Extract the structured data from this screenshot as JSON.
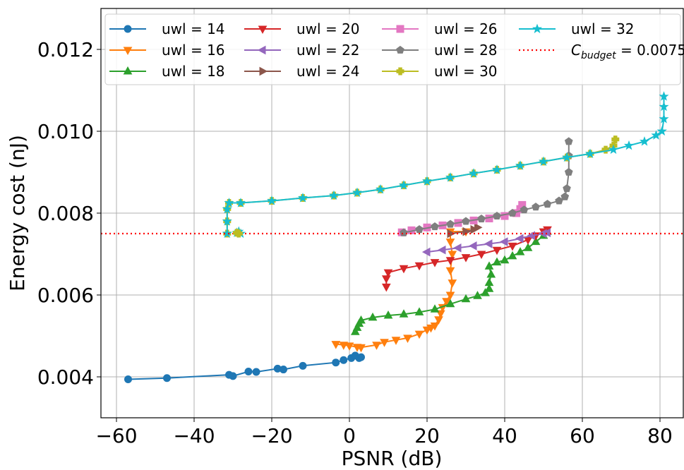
{
  "chart_data": {
    "type": "line",
    "xlabel": "PSNR (dB)",
    "ylabel": "Energy cost (nJ)",
    "xlim": [
      -64,
      86
    ],
    "ylim": [
      0.003,
      0.013
    ],
    "xticks": [
      -60,
      -40,
      -20,
      0,
      20,
      40,
      60,
      80
    ],
    "xtick_labels": [
      "−60",
      "−40",
      "−20",
      "0",
      "20",
      "40",
      "60",
      "80"
    ],
    "yticks": [
      0.004,
      0.006,
      0.008,
      0.01,
      0.012
    ],
    "ytick_labels": [
      "0.004",
      "0.006",
      "0.008",
      "0.010",
      "0.012"
    ],
    "grid": true,
    "legend": {
      "placement": "top",
      "columns": 4
    },
    "series": [
      {
        "name": "uwl = 14",
        "color": "#1f77b4",
        "marker": "circle",
        "points": [
          [
            -57,
            0.00394
          ],
          [
            -47,
            0.00397
          ],
          [
            -31,
            0.00405
          ],
          [
            -30,
            0.00402
          ],
          [
            -26,
            0.00413
          ],
          [
            -24,
            0.00412
          ],
          [
            -18.5,
            0.0042
          ],
          [
            -17,
            0.00418
          ],
          [
            -12,
            0.00427
          ],
          [
            -3.5,
            0.00435
          ],
          [
            -1.5,
            0.00441
          ],
          [
            0.5,
            0.00446
          ],
          [
            1.5,
            0.00452
          ],
          [
            2.5,
            0.00446
          ],
          [
            3,
            0.00448
          ]
        ]
      },
      {
        "name": "uwl = 16",
        "color": "#ff7f0e",
        "marker": "triangle-down",
        "points": [
          [
            -3.5,
            0.0048
          ],
          [
            -1.5,
            0.00478
          ],
          [
            0,
            0.00476
          ],
          [
            2,
            0.00473
          ],
          [
            3,
            0.00472
          ],
          [
            7,
            0.00478
          ],
          [
            9,
            0.00485
          ],
          [
            12,
            0.0049
          ],
          [
            15,
            0.00495
          ],
          [
            18,
            0.00505
          ],
          [
            20,
            0.00515
          ],
          [
            21,
            0.0052
          ],
          [
            22,
            0.00525
          ],
          [
            23,
            0.0054
          ],
          [
            23.5,
            0.00555
          ],
          [
            24,
            0.0057
          ],
          [
            25,
            0.00585
          ],
          [
            26,
            0.006
          ],
          [
            26.5,
            0.0063
          ],
          [
            26,
            0.0066
          ],
          [
            26.5,
            0.007
          ],
          [
            26,
            0.0073
          ],
          [
            26,
            0.00755
          ],
          [
            30,
            0.00755
          ]
        ]
      },
      {
        "name": "uwl = 18",
        "color": "#2ca02c",
        "marker": "triangle-up",
        "points": [
          [
            1.5,
            0.0051
          ],
          [
            2,
            0.0052
          ],
          [
            2.5,
            0.0053
          ],
          [
            3,
            0.00538
          ],
          [
            6,
            0.00545
          ],
          [
            10,
            0.0055
          ],
          [
            14,
            0.00553
          ],
          [
            18,
            0.00558
          ],
          [
            22,
            0.00565
          ],
          [
            26,
            0.00578
          ],
          [
            30,
            0.0059
          ],
          [
            33,
            0.00598
          ],
          [
            35,
            0.00605
          ],
          [
            36,
            0.00615
          ],
          [
            36,
            0.0063
          ],
          [
            36.5,
            0.0065
          ],
          [
            36,
            0.0067
          ],
          [
            38,
            0.0068
          ],
          [
            40,
            0.00685
          ],
          [
            42,
            0.00695
          ],
          [
            44,
            0.00705
          ],
          [
            46,
            0.00715
          ],
          [
            48,
            0.0073
          ],
          [
            50,
            0.00745
          ],
          [
            51,
            0.00755
          ]
        ]
      },
      {
        "name": "uwl = 20",
        "color": "#d62728",
        "marker": "triangle-down",
        "points": [
          [
            9.5,
            0.0062
          ],
          [
            9.5,
            0.0064
          ],
          [
            10,
            0.00655
          ],
          [
            14,
            0.00665
          ],
          [
            18,
            0.00672
          ],
          [
            22,
            0.0068
          ],
          [
            26,
            0.00685
          ],
          [
            30,
            0.00692
          ],
          [
            34,
            0.007
          ],
          [
            38,
            0.0071
          ],
          [
            42,
            0.0072
          ],
          [
            46,
            0.00735
          ],
          [
            48,
            0.00745
          ],
          [
            50,
            0.00755
          ],
          [
            51,
            0.0076
          ]
        ]
      },
      {
        "name": "uwl = 22",
        "color": "#9467bd",
        "marker": "triangle-left",
        "points": [
          [
            20,
            0.00705
          ],
          [
            24,
            0.0071
          ],
          [
            28,
            0.00715
          ],
          [
            32,
            0.0072
          ],
          [
            36,
            0.00725
          ],
          [
            40,
            0.0073
          ],
          [
            44,
            0.00738
          ],
          [
            47,
            0.00745
          ],
          [
            50,
            0.0075
          ],
          [
            51,
            0.00752
          ]
        ]
      },
      {
        "name": "uwl = 24",
        "color": "#8c564b",
        "marker": "triangle-right",
        "points": [
          [
            26,
            0.0075
          ],
          [
            30,
            0.00755
          ],
          [
            32,
            0.0076
          ],
          [
            33,
            0.00765
          ]
        ]
      },
      {
        "name": "uwl = 26",
        "color": "#e377c2",
        "marker": "square",
        "points": [
          [
            13.5,
            0.00753
          ],
          [
            16,
            0.00758
          ],
          [
            20,
            0.00765
          ],
          [
            24,
            0.0077
          ],
          [
            28,
            0.00776
          ],
          [
            32,
            0.00782
          ],
          [
            36,
            0.00787
          ],
          [
            40,
            0.00793
          ],
          [
            43,
            0.008
          ],
          [
            44,
            0.0081
          ],
          [
            44.5,
            0.0082
          ]
        ]
      },
      {
        "name": "uwl = 28",
        "color": "#7f7f7f",
        "marker": "pentagon",
        "points": [
          [
            14,
            0.00752
          ],
          [
            18,
            0.0076
          ],
          [
            22,
            0.00767
          ],
          [
            26,
            0.00773
          ],
          [
            30,
            0.0078
          ],
          [
            34,
            0.00786
          ],
          [
            38,
            0.00793
          ],
          [
            42,
            0.008
          ],
          [
            45,
            0.00808
          ],
          [
            48,
            0.00815
          ],
          [
            51,
            0.00822
          ],
          [
            54,
            0.0083
          ],
          [
            55.5,
            0.0084
          ],
          [
            56,
            0.0086
          ],
          [
            56.5,
            0.009
          ],
          [
            56.5,
            0.0094
          ],
          [
            56.5,
            0.00975
          ]
        ]
      },
      {
        "name": "uwl = 30",
        "color": "#bcbd22",
        "marker": "plus",
        "points": [
          [
            -31.5,
            0.0075
          ],
          [
            -31.5,
            0.0078
          ],
          [
            -31.5,
            0.0081
          ],
          [
            -31,
            0.00825
          ],
          [
            -28,
            0.00825
          ],
          [
            -20,
            0.0083
          ],
          [
            -12,
            0.00837
          ],
          [
            -4,
            0.00843
          ],
          [
            2,
            0.0085
          ],
          [
            8,
            0.00858
          ],
          [
            14,
            0.00868
          ],
          [
            20,
            0.00878
          ],
          [
            26,
            0.00887
          ],
          [
            32,
            0.00897
          ],
          [
            38,
            0.00906
          ],
          [
            44,
            0.00916
          ],
          [
            50,
            0.00926
          ],
          [
            56,
            0.00936
          ],
          [
            62,
            0.00945
          ],
          [
            66,
            0.00955
          ],
          [
            68,
            0.00965
          ],
          [
            68.5,
            0.0098
          ]
        ]
      },
      {
        "name": "uwl = 32",
        "color": "#17becf",
        "marker": "star",
        "points": [
          [
            -31.5,
            0.0075
          ],
          [
            -31.5,
            0.0078
          ],
          [
            -31.5,
            0.0081
          ],
          [
            -31,
            0.00825
          ],
          [
            -28,
            0.00825
          ],
          [
            -20,
            0.0083
          ],
          [
            -12,
            0.00837
          ],
          [
            -4,
            0.00843
          ],
          [
            2,
            0.0085
          ],
          [
            8,
            0.00858
          ],
          [
            14,
            0.00868
          ],
          [
            20,
            0.00878
          ],
          [
            26,
            0.00887
          ],
          [
            32,
            0.00897
          ],
          [
            38,
            0.00906
          ],
          [
            44,
            0.00916
          ],
          [
            50,
            0.00926
          ],
          [
            56,
            0.00936
          ],
          [
            62,
            0.00945
          ],
          [
            68,
            0.00955
          ],
          [
            72,
            0.00965
          ],
          [
            76,
            0.00975
          ],
          [
            79,
            0.0099
          ],
          [
            80.5,
            0.01
          ],
          [
            81,
            0.0103
          ],
          [
            81,
            0.0106
          ],
          [
            81,
            0.01085
          ]
        ]
      },
      {
        "name": "Cbudget = 0.0075",
        "color": "#ff0000",
        "style": "dotted",
        "y": 0.0075
      }
    ]
  },
  "extra_markers": [
    {
      "series": 9,
      "points": [
        [
          -29,
          0.00752
        ],
        [
          -28,
          0.0075
        ],
        [
          -28.5,
          0.00755
        ]
      ]
    },
    {
      "series": 8,
      "points": [
        [
          -29,
          0.00752
        ],
        [
          -28.5,
          0.0075
        ]
      ]
    }
  ],
  "legend_budget_label": {
    "prefix": "C",
    "subscript": "budget",
    "suffix": " = 0.0075"
  }
}
